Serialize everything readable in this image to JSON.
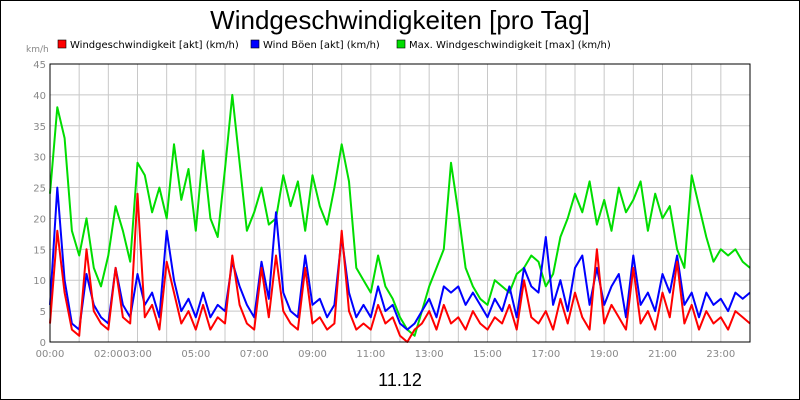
{
  "chart_data": {
    "type": "line",
    "title": "Windgeschwindigkeiten [pro Tag]",
    "xlabel": "11.12",
    "ylabel": "km/h",
    "ylim": [
      0,
      45
    ],
    "xlim_hours": [
      0,
      24
    ],
    "y_ticks": [
      0,
      5,
      10,
      15,
      20,
      25,
      30,
      35,
      40,
      45
    ],
    "x_tick_labels": [
      {
        "h": 0,
        "label": "00:00"
      },
      {
        "h": 2,
        "label": "02:00"
      },
      {
        "h": 3,
        "label": "03:00"
      },
      {
        "h": 5,
        "label": "05:00"
      },
      {
        "h": 7,
        "label": "07:00"
      },
      {
        "h": 9,
        "label": "09:00"
      },
      {
        "h": 11,
        "label": "11:00"
      },
      {
        "h": 13,
        "label": "13:00"
      },
      {
        "h": 15,
        "label": "15:00"
      },
      {
        "h": 17,
        "label": "17:00"
      },
      {
        "h": 19,
        "label": "19:00"
      },
      {
        "h": 21,
        "label": "21:00"
      },
      {
        "h": 23,
        "label": "23:00"
      }
    ],
    "grid": true,
    "legend_position": "top",
    "series": [
      {
        "name": "Windgeschwindigkeit [akt] (km/h)",
        "color": "#ff0000",
        "x": [
          0,
          0.25,
          0.5,
          0.75,
          1,
          1.25,
          1.5,
          1.75,
          2,
          2.25,
          2.5,
          2.75,
          3,
          3.25,
          3.5,
          3.75,
          4,
          4.25,
          4.5,
          4.75,
          5,
          5.25,
          5.5,
          5.75,
          6,
          6.25,
          6.5,
          6.75,
          7,
          7.25,
          7.5,
          7.75,
          8,
          8.25,
          8.5,
          8.75,
          9,
          9.25,
          9.5,
          9.75,
          10,
          10.25,
          10.5,
          10.75,
          11,
          11.25,
          11.5,
          11.75,
          12,
          12.25,
          12.5,
          12.75,
          13,
          13.25,
          13.5,
          13.75,
          14,
          14.25,
          14.5,
          14.75,
          15,
          15.25,
          15.5,
          15.75,
          16,
          16.25,
          16.5,
          16.75,
          17,
          17.25,
          17.5,
          17.75,
          18,
          18.25,
          18.5,
          18.75,
          19,
          19.25,
          19.5,
          19.75,
          20,
          20.25,
          20.5,
          20.75,
          21,
          21.25,
          21.5,
          21.75,
          22,
          22.25,
          22.5,
          22.75,
          23,
          23.25,
          23.5,
          23.75,
          24
        ],
        "values": [
          3,
          18,
          8,
          2,
          1,
          15,
          5,
          3,
          2,
          12,
          4,
          3,
          24,
          4,
          6,
          2,
          13,
          8,
          3,
          5,
          2,
          6,
          2,
          4,
          3,
          14,
          6,
          3,
          2,
          12,
          4,
          14,
          5,
          3,
          2,
          12,
          3,
          4,
          2,
          3,
          18,
          5,
          2,
          3,
          2,
          6,
          3,
          4,
          1,
          0,
          2,
          3,
          5,
          2,
          6,
          3,
          4,
          2,
          5,
          3,
          2,
          4,
          3,
          6,
          2,
          10,
          4,
          3,
          5,
          2,
          7,
          3,
          8,
          4,
          2,
          15,
          3,
          6,
          4,
          2,
          12,
          3,
          5,
          2,
          8,
          4,
          13,
          3,
          6,
          2,
          5,
          3,
          4,
          2,
          5,
          4,
          3
        ]
      },
      {
        "name": "Wind Böen [akt] (km/h)",
        "color": "#0000ff",
        "x": [
          0,
          0.25,
          0.5,
          0.75,
          1,
          1.25,
          1.5,
          1.75,
          2,
          2.25,
          2.5,
          2.75,
          3,
          3.25,
          3.5,
          3.75,
          4,
          4.25,
          4.5,
          4.75,
          5,
          5.25,
          5.5,
          5.75,
          6,
          6.25,
          6.5,
          6.75,
          7,
          7.25,
          7.5,
          7.75,
          8,
          8.25,
          8.5,
          8.75,
          9,
          9.25,
          9.5,
          9.75,
          10,
          10.25,
          10.5,
          10.75,
          11,
          11.25,
          11.5,
          11.75,
          12,
          12.25,
          12.5,
          12.75,
          13,
          13.25,
          13.5,
          13.75,
          14,
          14.25,
          14.5,
          14.75,
          15,
          15.25,
          15.5,
          15.75,
          16,
          16.25,
          16.5,
          16.75,
          17,
          17.25,
          17.5,
          17.75,
          18,
          18.25,
          18.5,
          18.75,
          19,
          19.25,
          19.5,
          19.75,
          20,
          20.25,
          20.5,
          20.75,
          21,
          21.25,
          21.5,
          21.75,
          22,
          22.25,
          22.5,
          22.75,
          23,
          23.25,
          23.5,
          23.75,
          24
        ],
        "values": [
          6,
          25,
          10,
          3,
          2,
          11,
          6,
          4,
          3,
          12,
          6,
          4,
          11,
          6,
          8,
          4,
          18,
          10,
          5,
          7,
          4,
          8,
          4,
          6,
          5,
          13,
          9,
          6,
          4,
          13,
          7,
          21,
          8,
          5,
          4,
          14,
          6,
          7,
          4,
          6,
          17,
          8,
          4,
          6,
          4,
          9,
          5,
          6,
          3,
          2,
          3,
          5,
          7,
          4,
          9,
          8,
          9,
          6,
          8,
          6,
          4,
          7,
          5,
          9,
          4,
          12,
          9,
          8,
          17,
          6,
          10,
          5,
          12,
          14,
          6,
          12,
          6,
          9,
          11,
          4,
          14,
          6,
          8,
          5,
          11,
          8,
          14,
          6,
          8,
          4,
          8,
          6,
          7,
          5,
          8,
          7,
          8
        ]
      },
      {
        "name": "Max. Windgeschwindigkeit [max] (km/h)",
        "color": "#00dd00",
        "x": [
          0,
          0.25,
          0.5,
          0.75,
          1,
          1.25,
          1.5,
          1.75,
          2,
          2.25,
          2.5,
          2.75,
          3,
          3.25,
          3.5,
          3.75,
          4,
          4.25,
          4.5,
          4.75,
          5,
          5.25,
          5.5,
          5.75,
          6,
          6.25,
          6.5,
          6.75,
          7,
          7.25,
          7.5,
          7.75,
          8,
          8.25,
          8.5,
          8.75,
          9,
          9.25,
          9.5,
          9.75,
          10,
          10.25,
          10.5,
          10.75,
          11,
          11.25,
          11.5,
          11.75,
          12,
          12.25,
          12.5,
          12.75,
          13,
          13.25,
          13.5,
          13.75,
          14,
          14.25,
          14.5,
          14.75,
          15,
          15.25,
          15.5,
          15.75,
          16,
          16.25,
          16.5,
          16.75,
          17,
          17.25,
          17.5,
          17.75,
          18,
          18.25,
          18.5,
          18.75,
          19,
          19.25,
          19.5,
          19.75,
          20,
          20.25,
          20.5,
          20.75,
          21,
          21.25,
          21.5,
          21.75,
          22,
          22.25,
          22.5,
          22.75,
          23,
          23.25,
          23.5,
          23.75,
          24
        ],
        "values": [
          24,
          38,
          33,
          18,
          14,
          20,
          12,
          9,
          14,
          22,
          18,
          13,
          29,
          27,
          21,
          25,
          20,
          32,
          23,
          28,
          18,
          31,
          20,
          17,
          28,
          40,
          29,
          18,
          21,
          25,
          19,
          20,
          27,
          22,
          26,
          18,
          27,
          22,
          19,
          25,
          32,
          26,
          12,
          10,
          8,
          14,
          9,
          7,
          4,
          2,
          1,
          5,
          9,
          12,
          15,
          29,
          21,
          12,
          9,
          7,
          6,
          10,
          9,
          8,
          11,
          12,
          14,
          13,
          9,
          11,
          17,
          20,
          24,
          21,
          26,
          19,
          23,
          18,
          25,
          21,
          23,
          26,
          18,
          24,
          20,
          22,
          15,
          12,
          27,
          22,
          17,
          13,
          15,
          14,
          15,
          13,
          12
        ]
      }
    ]
  }
}
